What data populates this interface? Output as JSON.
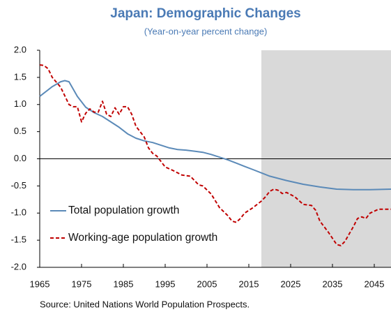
{
  "chart_data": {
    "type": "line",
    "title": "Japan: Demographic Changes",
    "subtitle": "(Year-on-year percent change)",
    "source": "Source: United Nations World Population Prospects.",
    "xlim": [
      1965,
      2049
    ],
    "xticks": [
      1965,
      1975,
      1985,
      1995,
      2005,
      2015,
      2025,
      2035,
      2045
    ],
    "ylim": [
      -2,
      2
    ],
    "yticks": [
      {
        "value": -2,
        "label": "-2.0"
      },
      {
        "value": -1.5,
        "label": "-1.5"
      },
      {
        "value": -1,
        "label": "-1.0"
      },
      {
        "value": -0.5,
        "label": "-0.5"
      },
      {
        "value": 0,
        "label": "0.0"
      },
      0.5,
      {
        "value": 1,
        "label": "1.0"
      },
      1.5,
      {
        "value": 2,
        "label": "2.0"
      }
    ],
    "shaded_xrange": [
      2018,
      2049
    ],
    "shade_color": "#d9d9d9",
    "legend": "lower left",
    "series": [
      {
        "name": "Total population growth",
        "color": "#5b8ab8",
        "dash": false,
        "x": [
          1965,
          1968,
          1970,
          1971,
          1972,
          1974,
          1976,
          1978,
          1980,
          1982,
          1984,
          1986,
          1988,
          1990,
          1992,
          1994,
          1996,
          1998,
          2000,
          2002,
          2004,
          2006,
          2008,
          2010,
          2012,
          2014,
          2016,
          2018,
          2020,
          2024,
          2028,
          2032,
          2036,
          2040,
          2044,
          2049
        ],
        "values": [
          1.15,
          1.33,
          1.42,
          1.44,
          1.42,
          1.15,
          0.95,
          0.85,
          0.78,
          0.68,
          0.58,
          0.46,
          0.38,
          0.33,
          0.3,
          0.25,
          0.2,
          0.17,
          0.16,
          0.14,
          0.12,
          0.08,
          0.03,
          -0.02,
          -0.08,
          -0.14,
          -0.2,
          -0.26,
          -0.32,
          -0.4,
          -0.47,
          -0.52,
          -0.56,
          -0.57,
          -0.57,
          -0.56
        ]
      },
      {
        "name": "Working-age population growth",
        "color": "#c00000",
        "dash": true,
        "x": [
          1965,
          1966,
          1967,
          1968,
          1970,
          1971,
          1972,
          1973,
          1974,
          1975,
          1976,
          1977,
          1978,
          1979,
          1980,
          1981,
          1982,
          1983,
          1984,
          1985,
          1986,
          1987,
          1988,
          1990,
          1991,
          1992,
          1993,
          1995,
          1997,
          1999,
          2001,
          2003,
          2004,
          2006,
          2008,
          2010,
          2011,
          2012,
          2013,
          2014,
          2016,
          2018,
          2019,
          2020,
          2021,
          2022,
          2023,
          2024,
          2026,
          2028,
          2030,
          2031,
          2032,
          2034,
          2036,
          2037,
          2038,
          2040,
          2041,
          2042,
          2043,
          2044,
          2046,
          2049
        ],
        "values": [
          1.73,
          1.72,
          1.66,
          1.5,
          1.32,
          1.16,
          1.0,
          0.96,
          0.96,
          0.68,
          0.84,
          0.92,
          0.86,
          0.86,
          1.06,
          0.82,
          0.78,
          0.94,
          0.82,
          0.96,
          0.96,
          0.82,
          0.6,
          0.4,
          0.2,
          0.1,
          0.05,
          -0.15,
          -0.22,
          -0.3,
          -0.32,
          -0.48,
          -0.5,
          -0.65,
          -0.9,
          -1.05,
          -1.15,
          -1.17,
          -1.1,
          -1.0,
          -0.9,
          -0.78,
          -0.7,
          -0.6,
          -0.56,
          -0.58,
          -0.64,
          -0.62,
          -0.7,
          -0.84,
          -0.86,
          -0.95,
          -1.15,
          -1.35,
          -1.58,
          -1.6,
          -1.52,
          -1.25,
          -1.1,
          -1.07,
          -1.1,
          -1.0,
          -0.93,
          -0.93
        ]
      }
    ]
  }
}
